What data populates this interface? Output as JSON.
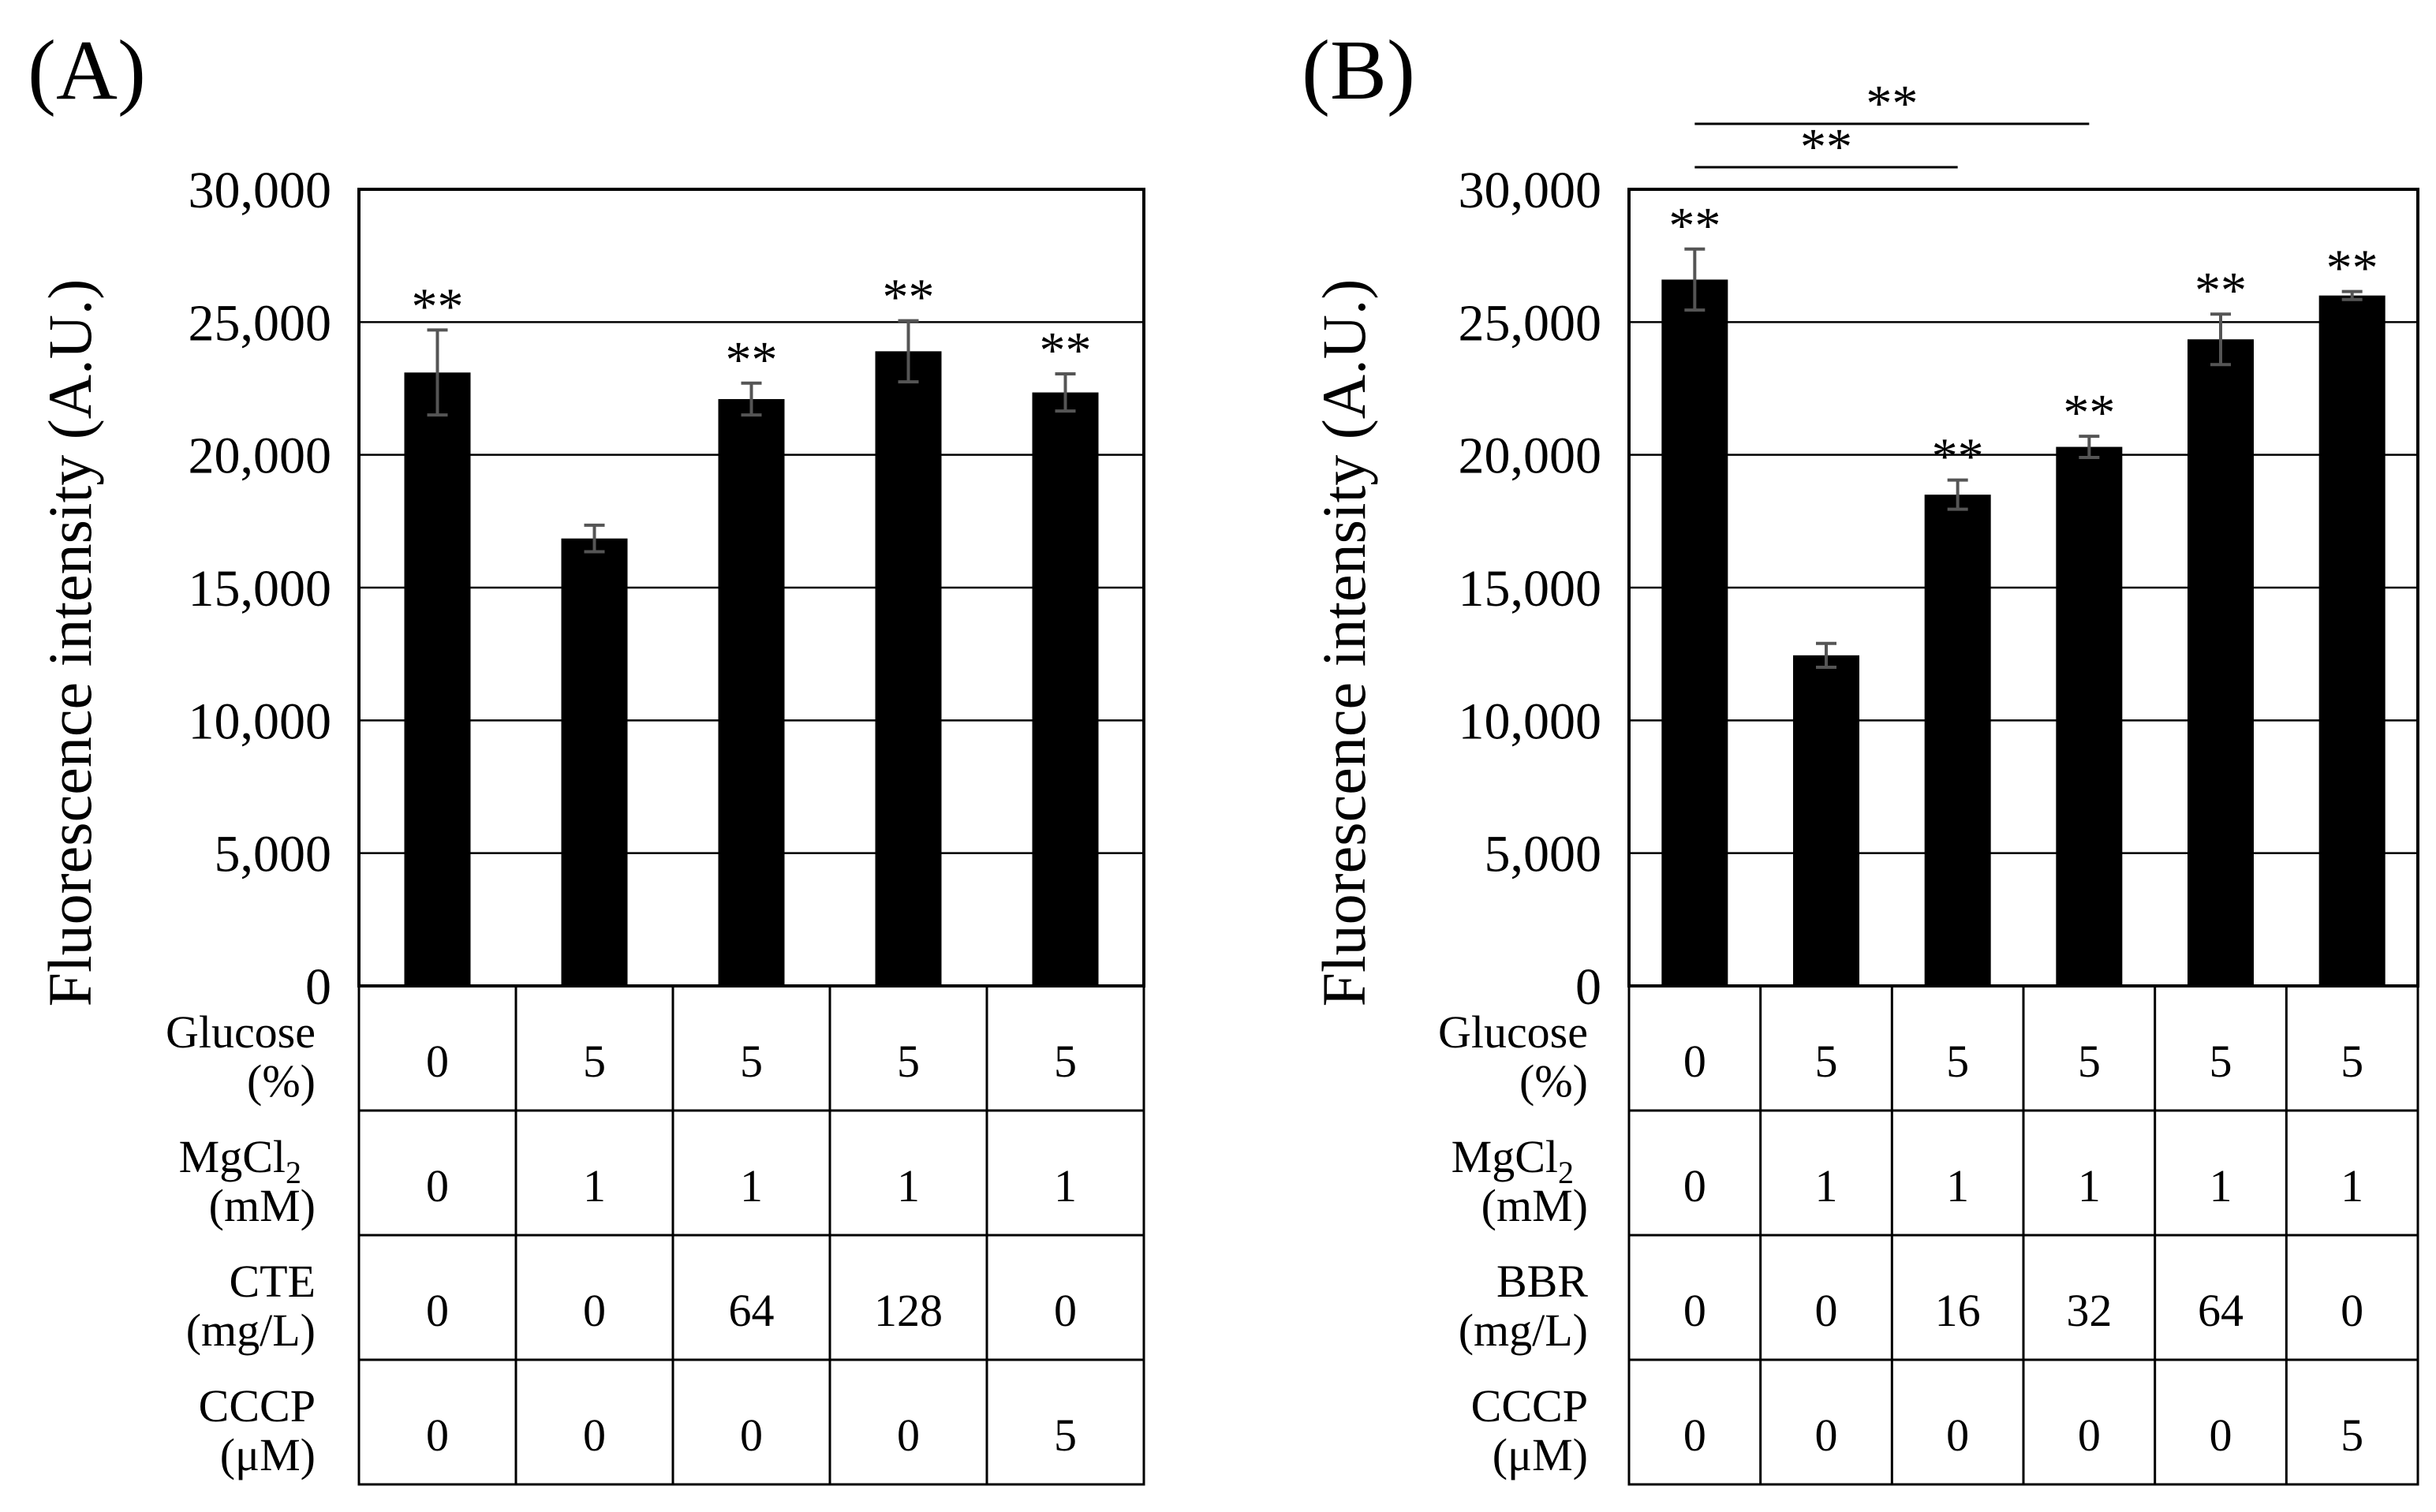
{
  "figure": {
    "background": "#ffffff",
    "bar_color": "#000000",
    "error_bar_color": "#555555",
    "grid_color": "#000000"
  },
  "chart_data": [
    {
      "panel_label": "(A)",
      "type": "bar",
      "ylabel": "Fluorescence intensity (A.U.)",
      "ylim": [
        0,
        30000
      ],
      "yticks": [
        0,
        5000,
        10000,
        15000,
        20000,
        25000,
        30000
      ],
      "ytick_labels": [
        "0",
        "5,000",
        "10,000",
        "15,000",
        "20,000",
        "25,000",
        "30,000"
      ],
      "grid": true,
      "values": [
        23100,
        16850,
        22100,
        23900,
        22350
      ],
      "errors": [
        1600,
        500,
        600,
        1150,
        700
      ],
      "significance": [
        "**",
        "",
        "**",
        "**",
        "**"
      ],
      "comparisons": [],
      "table": {
        "rows": [
          {
            "label": [
              "Glucose",
              "(%)"
            ],
            "values": [
              "0",
              "5",
              "5",
              "5",
              "5"
            ]
          },
          {
            "label": [
              "MgCl",
              "2",
              "(mM)"
            ],
            "subscript": true,
            "values": [
              "0",
              "1",
              "1",
              "1",
              "1"
            ]
          },
          {
            "label": [
              "CTE",
              "(mg/L)"
            ],
            "values": [
              "0",
              "0",
              "64",
              "128",
              "0"
            ]
          },
          {
            "label": [
              "CCCP",
              "(μM)"
            ],
            "values": [
              "0",
              "0",
              "0",
              "0",
              "5"
            ]
          }
        ]
      }
    },
    {
      "panel_label": "(B)",
      "type": "bar",
      "ylabel": "Fluorescence intensity (A.U.)",
      "ylim": [
        0,
        30000
      ],
      "yticks": [
        0,
        5000,
        10000,
        15000,
        20000,
        25000,
        30000
      ],
      "ytick_labels": [
        "0",
        "5,000",
        "10,000",
        "15,000",
        "20,000",
        "25,000",
        "30,000"
      ],
      "grid": true,
      "values": [
        26600,
        12450,
        18500,
        20300,
        24350,
        26000
      ],
      "errors": [
        1150,
        450,
        550,
        400,
        950,
        150
      ],
      "significance": [
        "**",
        "",
        "**",
        "**",
        "**",
        "**"
      ],
      "comparisons": [
        {
          "from": 0,
          "to": 2,
          "label": "**"
        },
        {
          "from": 0,
          "to": 3,
          "label": "**"
        }
      ],
      "table": {
        "rows": [
          {
            "label": [
              "Glucose",
              "(%)"
            ],
            "values": [
              "0",
              "5",
              "5",
              "5",
              "5",
              "5"
            ]
          },
          {
            "label": [
              "MgCl",
              "2",
              "(mM)"
            ],
            "subscript": true,
            "values": [
              "0",
              "1",
              "1",
              "1",
              "1",
              "1"
            ]
          },
          {
            "label": [
              "BBR",
              "(mg/L)"
            ],
            "values": [
              "0",
              "0",
              "16",
              "32",
              "64",
              "0"
            ]
          },
          {
            "label": [
              "CCCP",
              "(μM)"
            ],
            "values": [
              "0",
              "0",
              "0",
              "0",
              "0",
              "5"
            ]
          }
        ]
      }
    }
  ]
}
